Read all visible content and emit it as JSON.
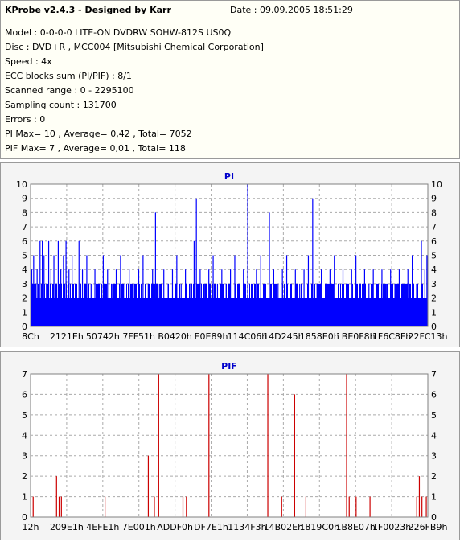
{
  "header": {
    "title": "KProbe v2.4.3 - Designed by Karr",
    "date": "Date : 09.09.2005 18:51:29"
  },
  "info_lines": [
    "Model : 0-0-0-0 LITE-ON DVDRW SOHW-812S  US0Q",
    "Disc : DVD+R , MCC004 [Mitsubishi Chemical Corporation]",
    "Speed : 4x",
    "ECC blocks sum (PI/PIF) : 8/1",
    "Scanned range : 0 - 2295100",
    "Sampling count : 131700",
    "Errors : 0",
    "PI Max= 10 , Average= 0,42 , Total= 7052",
    "PIF Max= 7 , Average= 0,01 , Total= 118"
  ],
  "colors": {
    "pi": "#0000ff",
    "pif": "#cc0000",
    "grid": "#aaaaaa",
    "title": "#0000cc"
  },
  "chart_data": [
    {
      "type": "bar",
      "title": "PI",
      "ylim": [
        0,
        10
      ],
      "yticks": [
        0,
        1,
        2,
        3,
        4,
        5,
        6,
        7,
        8,
        9,
        10
      ],
      "xrange": [
        140,
        2295100
      ],
      "xticks": [
        "8Ch",
        "2121Eh",
        "50742h",
        "7FF51h",
        "B0420h",
        "E0E89h",
        "114C06h",
        "14D245h",
        "1858E0h",
        "1BE0F8h",
        "1F6C8Fh",
        "22FC13h"
      ],
      "baseline_level": 2,
      "peaks": [
        {
          "x": 7000,
          "y": 4
        },
        {
          "x": 18000,
          "y": 5
        },
        {
          "x": 30000,
          "y": 3
        },
        {
          "x": 38000,
          "y": 4
        },
        {
          "x": 55000,
          "y": 6
        },
        {
          "x": 68000,
          "y": 6
        },
        {
          "x": 78000,
          "y": 5
        },
        {
          "x": 92000,
          "y": 3
        },
        {
          "x": 105000,
          "y": 6
        },
        {
          "x": 118000,
          "y": 4
        },
        {
          "x": 135000,
          "y": 5
        },
        {
          "x": 150000,
          "y": 3
        },
        {
          "x": 160000,
          "y": 6
        },
        {
          "x": 175000,
          "y": 4
        },
        {
          "x": 190000,
          "y": 5
        },
        {
          "x": 205000,
          "y": 6
        },
        {
          "x": 222000,
          "y": 4
        },
        {
          "x": 240000,
          "y": 5
        },
        {
          "x": 262000,
          "y": 3
        },
        {
          "x": 280000,
          "y": 6
        },
        {
          "x": 300000,
          "y": 4
        },
        {
          "x": 325000,
          "y": 5
        },
        {
          "x": 350000,
          "y": 3
        },
        {
          "x": 372000,
          "y": 4
        },
        {
          "x": 395000,
          "y": 3
        },
        {
          "x": 420000,
          "y": 5
        },
        {
          "x": 445000,
          "y": 4
        },
        {
          "x": 470000,
          "y": 3
        },
        {
          "x": 495000,
          "y": 4
        },
        {
          "x": 520000,
          "y": 5
        },
        {
          "x": 545000,
          "y": 3
        },
        {
          "x": 570000,
          "y": 4
        },
        {
          "x": 600000,
          "y": 3
        },
        {
          "x": 625000,
          "y": 4
        },
        {
          "x": 650000,
          "y": 5
        },
        {
          "x": 680000,
          "y": 3
        },
        {
          "x": 705000,
          "y": 4
        },
        {
          "x": 722000,
          "y": 8
        },
        {
          "x": 745000,
          "y": 3
        },
        {
          "x": 770000,
          "y": 4
        },
        {
          "x": 795000,
          "y": 3
        },
        {
          "x": 820000,
          "y": 4
        },
        {
          "x": 845000,
          "y": 5
        },
        {
          "x": 870000,
          "y": 3
        },
        {
          "x": 895000,
          "y": 4
        },
        {
          "x": 920000,
          "y": 3
        },
        {
          "x": 945000,
          "y": 6
        },
        {
          "x": 958000,
          "y": 9
        },
        {
          "x": 980000,
          "y": 4
        },
        {
          "x": 1005000,
          "y": 3
        },
        {
          "x": 1030000,
          "y": 4
        },
        {
          "x": 1055000,
          "y": 5
        },
        {
          "x": 1080000,
          "y": 3
        },
        {
          "x": 1105000,
          "y": 4
        },
        {
          "x": 1130000,
          "y": 3
        },
        {
          "x": 1155000,
          "y": 4
        },
        {
          "x": 1180000,
          "y": 5
        },
        {
          "x": 1205000,
          "y": 3
        },
        {
          "x": 1230000,
          "y": 4
        },
        {
          "x": 1255000,
          "y": 10
        },
        {
          "x": 1280000,
          "y": 3
        },
        {
          "x": 1305000,
          "y": 4
        },
        {
          "x": 1330000,
          "y": 5
        },
        {
          "x": 1355000,
          "y": 3
        },
        {
          "x": 1380000,
          "y": 8
        },
        {
          "x": 1405000,
          "y": 4
        },
        {
          "x": 1430000,
          "y": 3
        },
        {
          "x": 1455000,
          "y": 4
        },
        {
          "x": 1480000,
          "y": 5
        },
        {
          "x": 1505000,
          "y": 3
        },
        {
          "x": 1530000,
          "y": 4
        },
        {
          "x": 1555000,
          "y": 3
        },
        {
          "x": 1580000,
          "y": 4
        },
        {
          "x": 1605000,
          "y": 5
        },
        {
          "x": 1630000,
          "y": 9
        },
        {
          "x": 1655000,
          "y": 3
        },
        {
          "x": 1680000,
          "y": 4
        },
        {
          "x": 1705000,
          "y": 3
        },
        {
          "x": 1730000,
          "y": 4
        },
        {
          "x": 1755000,
          "y": 5
        },
        {
          "x": 1780000,
          "y": 3
        },
        {
          "x": 1805000,
          "y": 4
        },
        {
          "x": 1830000,
          "y": 3
        },
        {
          "x": 1855000,
          "y": 4
        },
        {
          "x": 1880000,
          "y": 5
        },
        {
          "x": 1905000,
          "y": 3
        },
        {
          "x": 1930000,
          "y": 4
        },
        {
          "x": 1955000,
          "y": 3
        },
        {
          "x": 1980000,
          "y": 4
        },
        {
          "x": 2005000,
          "y": 3
        },
        {
          "x": 2030000,
          "y": 4
        },
        {
          "x": 2055000,
          "y": 3
        },
        {
          "x": 2080000,
          "y": 4
        },
        {
          "x": 2105000,
          "y": 3
        },
        {
          "x": 2130000,
          "y": 4
        },
        {
          "x": 2155000,
          "y": 3
        },
        {
          "x": 2180000,
          "y": 4
        },
        {
          "x": 2205000,
          "y": 5
        },
        {
          "x": 2230000,
          "y": 3
        },
        {
          "x": 2258000,
          "y": 6
        },
        {
          "x": 2278000,
          "y": 4
        },
        {
          "x": 2290000,
          "y": 5
        }
      ]
    },
    {
      "type": "bar",
      "title": "PIF",
      "ylim": [
        0,
        7
      ],
      "yticks": [
        0,
        1,
        2,
        3,
        4,
        5,
        6,
        7
      ],
      "xrange": [
        18,
        2293945
      ],
      "xticks": [
        "12h",
        "209E1h",
        "4EFE1h",
        "7E001h",
        "ADDF0h",
        "DF7E1h",
        "1134F3h",
        "14B02Eh",
        "1819C0h",
        "1B8E07h",
        "1F0023h",
        "226FB9h"
      ],
      "bars": [
        {
          "x": 15000,
          "y": 1
        },
        {
          "x": 150000,
          "y": 2
        },
        {
          "x": 165000,
          "y": 1
        },
        {
          "x": 178000,
          "y": 1
        },
        {
          "x": 430000,
          "y": 1
        },
        {
          "x": 680000,
          "y": 3
        },
        {
          "x": 715000,
          "y": 1
        },
        {
          "x": 740000,
          "y": 7
        },
        {
          "x": 880000,
          "y": 1
        },
        {
          "x": 900000,
          "y": 1
        },
        {
          "x": 1030000,
          "y": 7
        },
        {
          "x": 1370000,
          "y": 7
        },
        {
          "x": 1450000,
          "y": 1
        },
        {
          "x": 1525000,
          "y": 6
        },
        {
          "x": 1590000,
          "y": 1
        },
        {
          "x": 1825000,
          "y": 7
        },
        {
          "x": 1840000,
          "y": 1
        },
        {
          "x": 1880000,
          "y": 1
        },
        {
          "x": 1960000,
          "y": 1
        },
        {
          "x": 2230000,
          "y": 1
        },
        {
          "x": 2245000,
          "y": 2
        },
        {
          "x": 2260000,
          "y": 1
        },
        {
          "x": 2285000,
          "y": 1
        }
      ]
    }
  ]
}
